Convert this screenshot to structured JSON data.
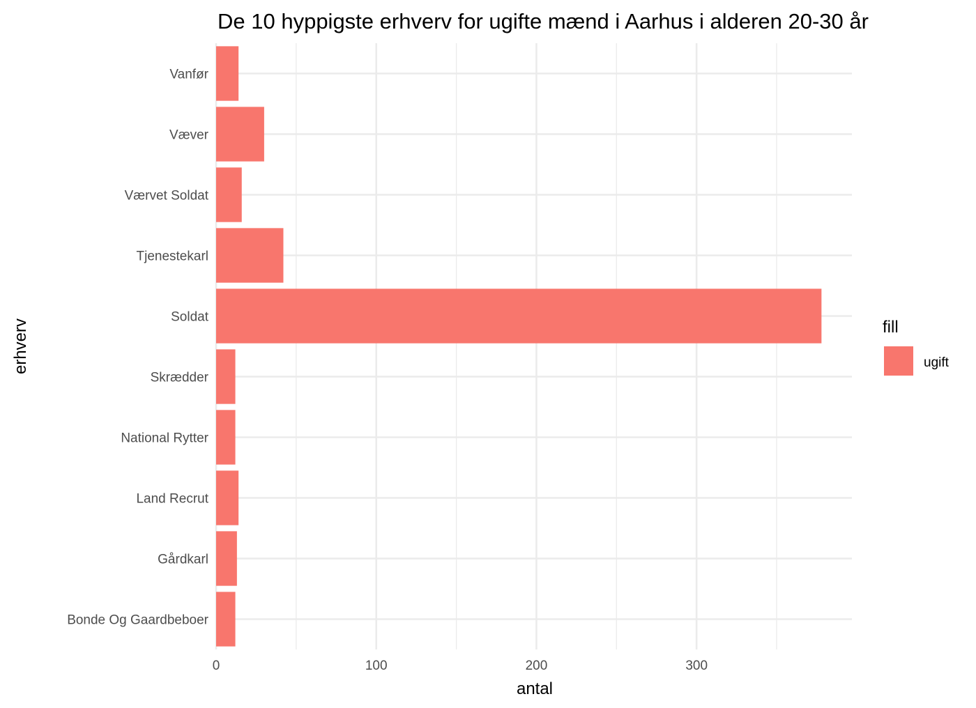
{
  "chart_data": {
    "type": "bar",
    "orientation": "horizontal",
    "title": "De 10 hyppigste erhverv for ugifte mænd i Aarhus i alderen 20-30 år",
    "xlabel": "antal",
    "ylabel": "erhverv",
    "categories": [
      "Bonde Og Gaardbeboer",
      "Gårdkarl",
      "Land Recrut",
      "National Rytter",
      "Skrædder",
      "Soldat",
      "Tjenestekarl",
      "Værvet Soldat",
      "Væver",
      "Vanfør"
    ],
    "series": [
      {
        "name": "ugift",
        "color": "#F8766D",
        "values": [
          12,
          13,
          14,
          12,
          12,
          378,
          42,
          16,
          30,
          14
        ]
      }
    ],
    "xlim": [
      0,
      397
    ],
    "x_ticks": [
      0,
      100,
      200,
      300
    ],
    "x_tick_labels": [
      "0",
      "100",
      "200",
      "300"
    ],
    "grid": true,
    "legend": {
      "title": "fill",
      "position": "right",
      "entries": [
        "ugift"
      ]
    }
  }
}
